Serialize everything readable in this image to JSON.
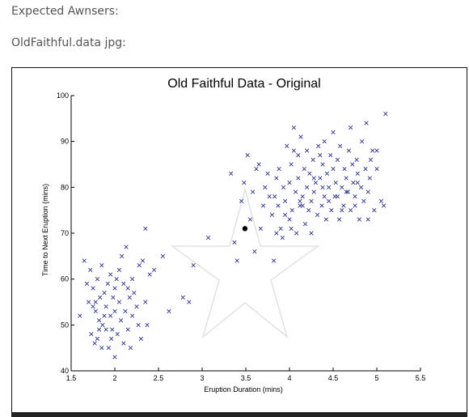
{
  "prose": {
    "line1": "Expected Awnsers:",
    "line2": "OldFaithful.data jpg:"
  },
  "chart_data": {
    "type": "scatter",
    "title": "Old Faithful Data - Original",
    "xlabel": "Eruption Duration (mins)",
    "ylabel": "Time to Next Eruption (mins)",
    "xlim": [
      1.5,
      5.5
    ],
    "ylim": [
      40,
      100
    ],
    "xticks": [
      "1.5",
      "2",
      "2.5",
      "3",
      "3.5",
      "4",
      "4.5",
      "5",
      "5.5"
    ],
    "yticks": [
      "40",
      "50",
      "60",
      "70",
      "80",
      "90",
      "100"
    ],
    "grid": false,
    "marker_color": "#303090",
    "highlight_point": {
      "x": 3.49,
      "y": 71,
      "color": "#000000"
    },
    "points": [
      [
        1.6,
        52
      ],
      [
        1.65,
        64
      ],
      [
        1.68,
        59
      ],
      [
        1.7,
        55
      ],
      [
        1.72,
        62
      ],
      [
        1.73,
        48
      ],
      [
        1.75,
        54
      ],
      [
        1.75,
        58
      ],
      [
        1.77,
        46
      ],
      [
        1.78,
        53
      ],
      [
        1.8,
        60
      ],
      [
        1.8,
        47
      ],
      [
        1.82,
        51
      ],
      [
        1.83,
        56
      ],
      [
        1.85,
        63
      ],
      [
        1.85,
        45
      ],
      [
        1.86,
        50
      ],
      [
        1.88,
        57
      ],
      [
        1.9,
        49
      ],
      [
        1.9,
        54
      ],
      [
        1.92,
        59
      ],
      [
        1.93,
        45
      ],
      [
        1.95,
        52
      ],
      [
        1.95,
        61
      ],
      [
        1.97,
        49
      ],
      [
        1.98,
        56
      ],
      [
        2.0,
        43
      ],
      [
        2.0,
        53
      ],
      [
        2.0,
        58
      ],
      [
        2.02,
        60
      ],
      [
        2.03,
        48
      ],
      [
        2.05,
        55
      ],
      [
        2.07,
        51
      ],
      [
        2.08,
        65
      ],
      [
        2.1,
        46
      ],
      [
        2.1,
        59
      ],
      [
        2.12,
        53
      ],
      [
        2.13,
        67
      ],
      [
        2.15,
        49
      ],
      [
        2.17,
        56
      ],
      [
        2.18,
        45
      ],
      [
        2.2,
        60
      ],
      [
        2.2,
        52
      ],
      [
        2.22,
        57
      ],
      [
        2.25,
        54
      ],
      [
        2.27,
        50
      ],
      [
        2.28,
        63
      ],
      [
        2.3,
        47
      ],
      [
        2.32,
        64
      ],
      [
        2.35,
        71
      ],
      [
        2.35,
        55
      ],
      [
        2.37,
        50
      ],
      [
        2.4,
        61
      ],
      [
        2.45,
        62
      ],
      [
        1.78,
        55
      ],
      [
        1.82,
        49
      ],
      [
        1.88,
        52
      ],
      [
        1.96,
        47
      ],
      [
        2.05,
        62
      ],
      [
        2.15,
        58
      ],
      [
        2.55,
        65
      ],
      [
        2.62,
        53
      ],
      [
        2.78,
        56
      ],
      [
        2.85,
        55
      ],
      [
        2.9,
        63
      ],
      [
        3.07,
        69
      ],
      [
        3.33,
        83
      ],
      [
        3.37,
        68
      ],
      [
        3.4,
        64
      ],
      [
        3.45,
        77
      ],
      [
        3.48,
        81
      ],
      [
        3.52,
        87
      ],
      [
        3.55,
        73
      ],
      [
        3.58,
        79
      ],
      [
        3.6,
        66
      ],
      [
        3.62,
        84
      ],
      [
        3.65,
        85
      ],
      [
        3.67,
        71
      ],
      [
        3.7,
        76
      ],
      [
        3.72,
        80
      ],
      [
        3.75,
        83
      ],
      [
        3.77,
        78
      ],
      [
        3.8,
        74
      ],
      [
        3.82,
        64
      ],
      [
        3.83,
        78
      ],
      [
        3.85,
        82
      ],
      [
        3.87,
        76
      ],
      [
        3.88,
        84
      ],
      [
        3.9,
        71
      ],
      [
        3.92,
        69
      ],
      [
        3.93,
        80
      ],
      [
        3.95,
        77
      ],
      [
        3.97,
        89
      ],
      [
        4.0,
        73
      ],
      [
        4.0,
        81
      ],
      [
        4.02,
        85
      ],
      [
        4.03,
        75
      ],
      [
        4.05,
        93
      ],
      [
        4.07,
        79
      ],
      [
        4.08,
        70
      ],
      [
        4.1,
        87
      ],
      [
        4.1,
        82
      ],
      [
        4.12,
        76
      ],
      [
        4.13,
        91
      ],
      [
        4.15,
        78
      ],
      [
        4.17,
        84
      ],
      [
        4.18,
        72
      ],
      [
        4.2,
        80
      ],
      [
        4.2,
        88
      ],
      [
        4.22,
        75
      ],
      [
        4.23,
        83
      ],
      [
        4.25,
        77
      ],
      [
        4.27,
        86
      ],
      [
        4.28,
        79
      ],
      [
        4.3,
        81
      ],
      [
        4.32,
        74
      ],
      [
        4.33,
        89
      ],
      [
        4.35,
        82
      ],
      [
        4.37,
        76
      ],
      [
        4.38,
        85
      ],
      [
        4.4,
        78
      ],
      [
        4.4,
        90
      ],
      [
        4.42,
        73
      ],
      [
        4.43,
        83
      ],
      [
        4.45,
        80
      ],
      [
        4.47,
        87
      ],
      [
        4.48,
        75
      ],
      [
        4.5,
        92
      ],
      [
        4.5,
        84
      ],
      [
        4.52,
        78
      ],
      [
        4.53,
        81
      ],
      [
        4.55,
        86
      ],
      [
        4.57,
        73
      ],
      [
        4.58,
        89
      ],
      [
        4.6,
        80
      ],
      [
        4.62,
        76
      ],
      [
        4.63,
        84
      ],
      [
        4.65,
        82
      ],
      [
        4.67,
        79
      ],
      [
        4.68,
        88
      ],
      [
        4.7,
        93
      ],
      [
        4.7,
        75
      ],
      [
        4.72,
        85
      ],
      [
        4.73,
        81
      ],
      [
        4.75,
        78
      ],
      [
        4.77,
        86
      ],
      [
        4.78,
        83
      ],
      [
        4.8,
        73
      ],
      [
        4.82,
        80
      ],
      [
        4.83,
        90
      ],
      [
        4.85,
        77
      ],
      [
        4.87,
        84
      ],
      [
        4.88,
        94
      ],
      [
        4.9,
        79
      ],
      [
        4.92,
        82
      ],
      [
        4.93,
        86
      ],
      [
        4.95,
        88
      ],
      [
        4.97,
        75
      ],
      [
        5.0,
        84
      ],
      [
        5.0,
        88
      ],
      [
        5.05,
        77
      ],
      [
        5.08,
        76
      ],
      [
        5.1,
        96
      ],
      [
        4.05,
        88
      ],
      [
        4.15,
        76
      ],
      [
        4.25,
        70
      ],
      [
        4.35,
        87
      ],
      [
        4.45,
        77
      ],
      [
        4.6,
        75
      ],
      [
        4.75,
        76
      ],
      [
        3.95,
        74
      ],
      [
        4.12,
        77
      ],
      [
        4.28,
        82
      ],
      [
        4.38,
        80
      ],
      [
        4.55,
        78
      ],
      [
        4.65,
        79
      ],
      [
        4.78,
        81
      ],
      [
        4.9,
        73
      ],
      [
        3.85,
        70
      ],
      [
        4.02,
        71
      ]
    ]
  }
}
